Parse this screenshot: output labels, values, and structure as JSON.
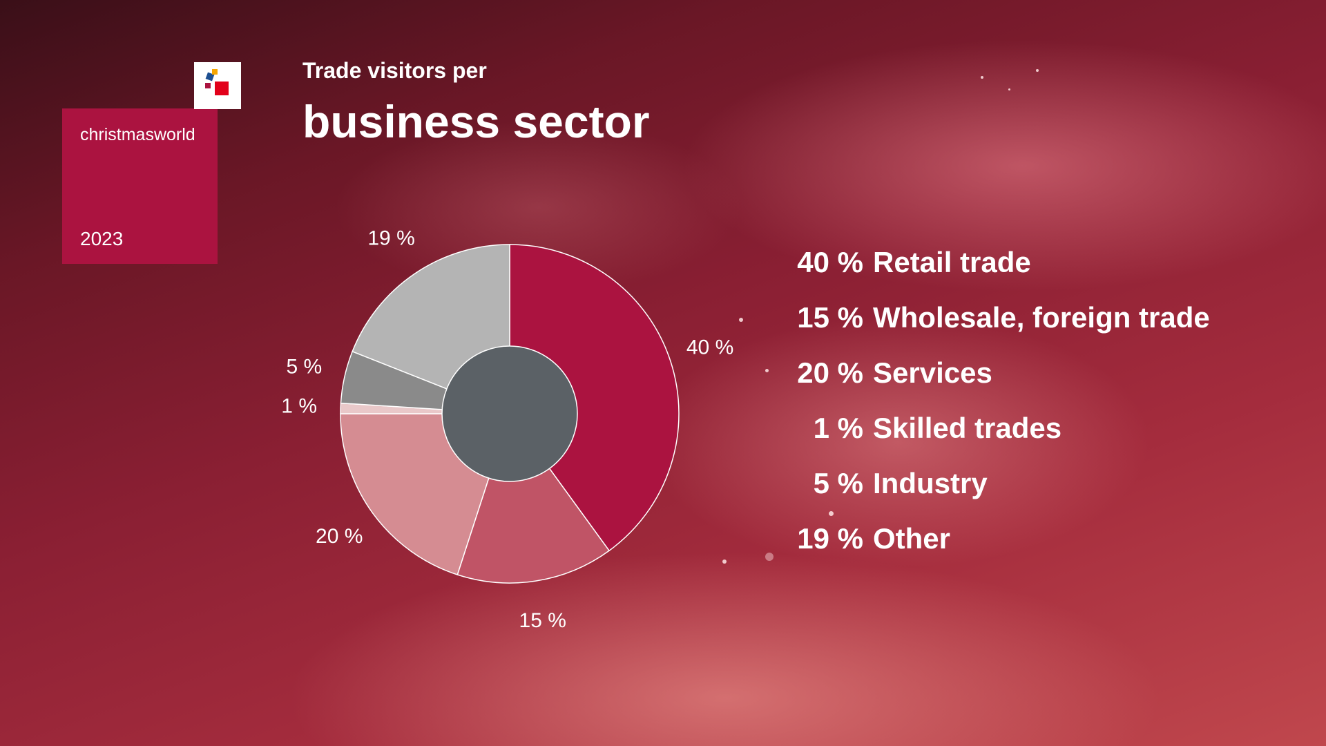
{
  "brand": {
    "name": "christmasworld",
    "year": "2023",
    "mark_colors": [
      "#e2001a",
      "#1d4f91",
      "#f7a600",
      "#ab1340"
    ]
  },
  "header": {
    "subtitle": "Trade visitors per",
    "title": "business sector"
  },
  "chart_data": {
    "type": "pie",
    "donut": true,
    "categories": [
      "Retail trade",
      "Wholesale, foreign trade",
      "Services",
      "Skilled trades",
      "Industry",
      "Other"
    ],
    "values": [
      40,
      15,
      20,
      1,
      5,
      19
    ],
    "labels": [
      "40 %",
      "15 %",
      "20 %",
      "1 %",
      "5 %",
      "19 %"
    ],
    "colors": [
      "#ab1340",
      "#c05466",
      "#d58c92",
      "#e9c8c9",
      "#8a8a8a",
      "#b4b4b4"
    ],
    "center_color": "#5b6166",
    "legend_position": "right"
  },
  "legend": [
    {
      "pct": "40 %",
      "label": "Retail trade"
    },
    {
      "pct": "15 %",
      "label": "Wholesale, foreign trade"
    },
    {
      "pct": "20 %",
      "label": "Services"
    },
    {
      "pct": "1 %",
      "label": "Skilled trades"
    },
    {
      "pct": "5 %",
      "label": "Industry"
    },
    {
      "pct": "19 %",
      "label": "Other"
    }
  ]
}
